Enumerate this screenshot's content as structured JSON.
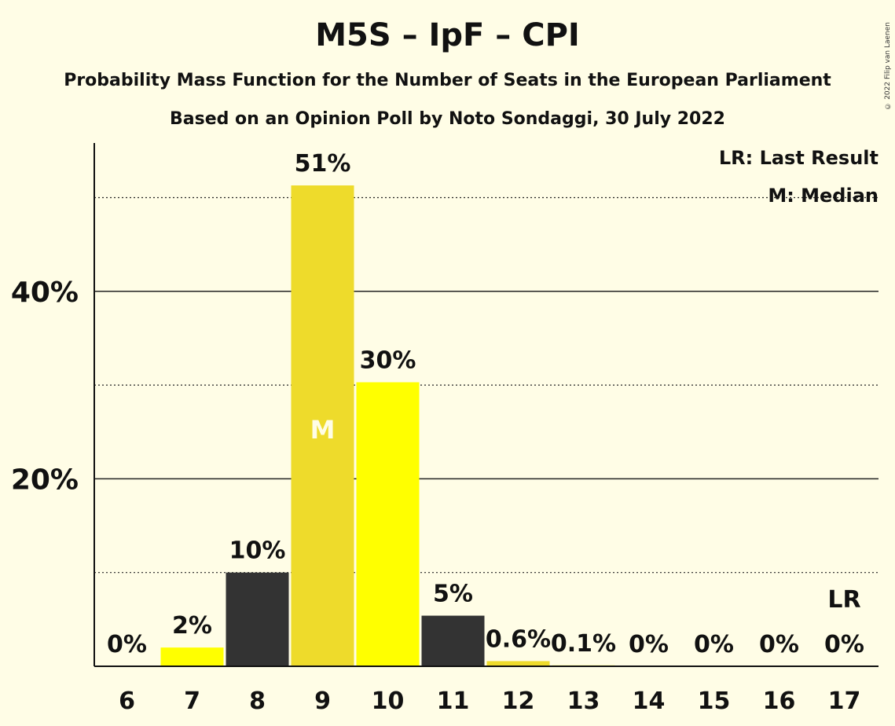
{
  "chart_data": {
    "type": "bar",
    "title": "M5S – IpF – CPI",
    "subtitle": "Probability Mass Function for the Number of Seats in the European Parliament",
    "source": "Based on an Opinion Poll by Noto Sondaggi, 30 July 2022",
    "copyright": "© 2022 Filip van Laenen",
    "categories": [
      "6",
      "7",
      "8",
      "9",
      "10",
      "11",
      "12",
      "13",
      "14",
      "15",
      "16",
      "17"
    ],
    "values": [
      0,
      2.0,
      10.0,
      51.3,
      30.3,
      5.4,
      0.55,
      0.1,
      0,
      0,
      0,
      0
    ],
    "value_labels": [
      "0%",
      "2%",
      "10%",
      "51%",
      "30%",
      "5%",
      "0.6%",
      "0.1%",
      "0%",
      "0%",
      "0%",
      "0%"
    ],
    "bar_colors": [
      "#ffff00",
      "#ffff00",
      "#333333",
      "#eedb2b",
      "#ffff00",
      "#333333",
      "#eedb2b",
      "#ffff00",
      "#ffff00",
      "#333333",
      "#eedb2b",
      "#ffff00"
    ],
    "ylim": [
      0,
      56
    ],
    "ytick_labels": [
      {
        "value": 20,
        "label": "20%"
      },
      {
        "value": 40,
        "label": "40%"
      }
    ],
    "dotted_gridlines": [
      10,
      30,
      50
    ],
    "median_index": 3,
    "median_marker": "M",
    "last_result_index": 11,
    "last_result_marker": "LR",
    "legend": {
      "position": "top-right",
      "entries": [
        "LR: Last Result",
        "M: Median"
      ]
    }
  }
}
